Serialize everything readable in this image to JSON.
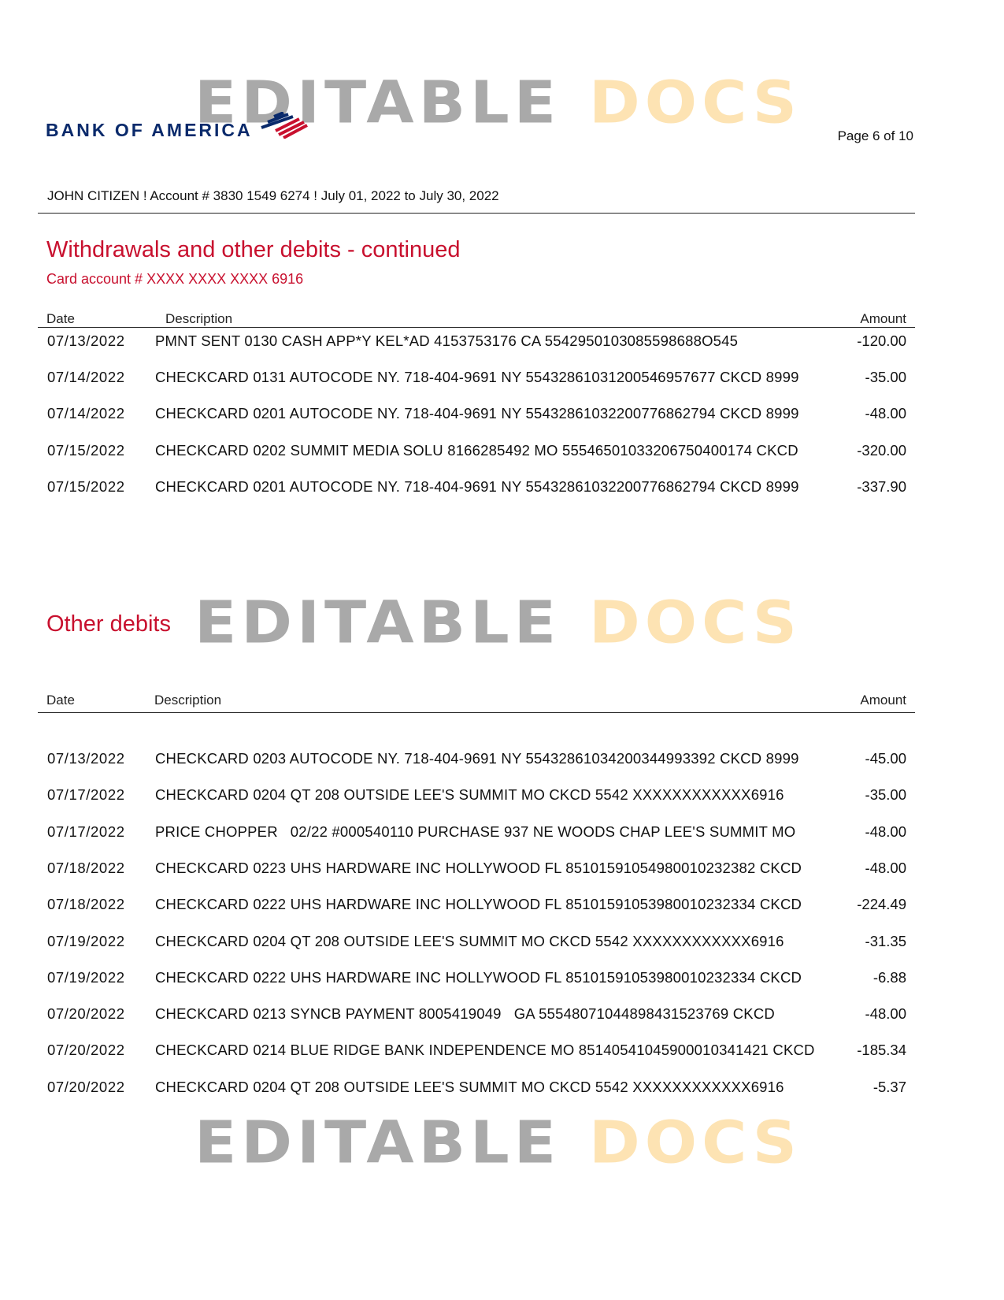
{
  "watermark": {
    "part1": "EDITABLE",
    "part2": "DOCS"
  },
  "header": {
    "logo_text": "BANK OF AMERICA",
    "page": "Page 6 of 10",
    "account_line": "JOHN CITIZEN ! Account # 3830 1549 6274 ! July 01, 2022 to July 30, 2022"
  },
  "colors": {
    "accent_red": "#c8102e",
    "brand_navy": "#0a2a6b"
  },
  "withdrawals": {
    "title": "Withdrawals and other debits - continued",
    "card_account": "Card account # XXXX XXXX XXXX 6916",
    "columns": {
      "date": "Date",
      "description": "Description",
      "amount": "Amount"
    },
    "rows": [
      {
        "date": "07/13/2022",
        "description": "PMNT SENT 0130 CASH APP*Y KEL*AD 4153753176 CA 5542950103085598688O545",
        "amount": "-120.00"
      },
      {
        "date": "07/14/2022",
        "description": "CHECKCARD 0131 AUTOCODE NY. 718-404-9691 NY 55432861031200546957677 CKCD 8999",
        "amount": "-35.00"
      },
      {
        "date": "07/14/2022",
        "description": "CHECKCARD 0201 AUTOCODE NY. 718-404-9691 NY 55432861032200776862794 CKCD 8999",
        "amount": "-48.00"
      },
      {
        "date": "07/15/2022",
        "description": "CHECKCARD 0202 SUMMIT MEDIA SOLU 8166285492 MO 55546501033206750400174 CKCD",
        "amount": "-320.00"
      },
      {
        "date": "07/15/2022",
        "description": "CHECKCARD 0201 AUTOCODE NY. 718-404-9691 NY 55432861032200776862794 CKCD 8999",
        "amount": "-337.90"
      }
    ]
  },
  "other_debits": {
    "title": "Other debits",
    "columns": {
      "date": "Date",
      "description": "Description",
      "amount": "Amount"
    },
    "rows": [
      {
        "date": "07/13/2022",
        "description": "CHECKCARD 0203 AUTOCODE NY. 718-404-9691 NY 55432861034200344993392 CKCD 8999",
        "amount": "-45.00"
      },
      {
        "date": "07/17/2022",
        "description": "CHECKCARD 0204 QT 208 OUTSIDE LEE'S SUMMIT MO CKCD 5542 XXXXXXXXXXXX6916",
        "amount": "-35.00"
      },
      {
        "date": "07/17/2022",
        "description": "PRICE CHOPPER   02/22 #000540110 PURCHASE 937 NE WOODS CHAP LEE'S SUMMIT MO",
        "amount": "-48.00"
      },
      {
        "date": "07/18/2022",
        "description": "CHECKCARD 0223 UHS HARDWARE INC HOLLYWOOD FL 85101591054980010232382 CKCD",
        "amount": "-48.00"
      },
      {
        "date": "07/18/2022",
        "description": "CHECKCARD 0222 UHS HARDWARE INC HOLLYWOOD FL 85101591053980010232334 CKCD",
        "amount": "-224.49"
      },
      {
        "date": "07/19/2022",
        "description": "CHECKCARD 0204 QT 208 OUTSIDE LEE'S SUMMIT MO CKCD 5542 XXXXXXXXXXXX6916",
        "amount": "-31.35"
      },
      {
        "date": "07/19/2022",
        "description": "CHECKCARD 0222 UHS HARDWARE INC HOLLYWOOD FL 85101591053980010232334 CKCD",
        "amount": "-6.88"
      },
      {
        "date": "07/20/2022",
        "description": "CHECKCARD 0213 SYNCB PAYMENT 8005419049   GA 55548071044898431523769 CKCD",
        "amount": "-48.00"
      },
      {
        "date": "07/20/2022",
        "description": "CHECKCARD 0214 BLUE RIDGE BANK INDEPENDENCE MO 85140541045900010341421 CKCD",
        "amount": "-185.34"
      },
      {
        "date": "07/20/2022",
        "description": "CHECKCARD 0204 QT 208 OUTSIDE LEE'S SUMMIT MO CKCD 5542 XXXXXXXXXXXX6916",
        "amount": "-5.37"
      }
    ]
  }
}
